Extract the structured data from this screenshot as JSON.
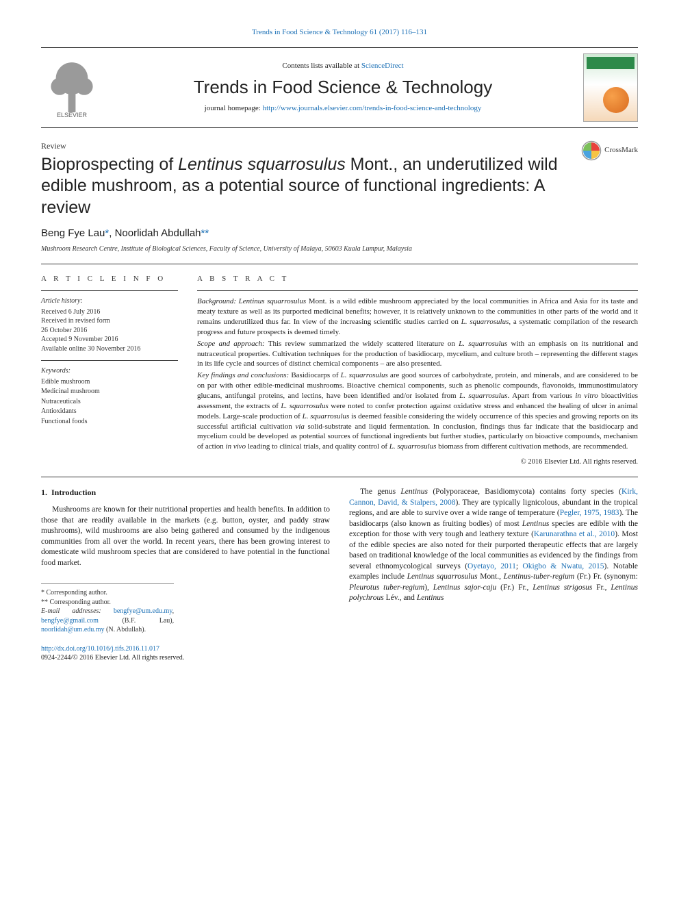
{
  "top_citation": "Trends in Food Science & Technology 61 (2017) 116–131",
  "masthead": {
    "contents_prefix": "Contents lists available at ",
    "contents_link": "ScienceDirect",
    "journal_name": "Trends in Food Science & Technology",
    "homepage_prefix": "journal homepage: ",
    "homepage_url": "http://www.journals.elsevier.com/trends-in-food-science-and-technology",
    "publisher": "ELSEVIER"
  },
  "article_type": "Review",
  "crossmark_label": "CrossMark",
  "title_html": "Bioprospecting of <em>Lentinus squarrosulus</em> Mont., an underutilized wild edible mushroom, as a potential source of functional ingredients: A review",
  "authors_html": "Beng Fye Lau<a href='#'>*</a>, Noorlidah Abdullah<a href='#'>**</a>",
  "affiliation": "Mushroom Research Centre, Institute of Biological Sciences, Faculty of Science, University of Malaya, 50603 Kuala Lumpur, Malaysia",
  "info": {
    "heading": "A R T I C L E   I N F O",
    "history_label": "Article history:",
    "history": [
      "Received 6 July 2016",
      "Received in revised form",
      "26 October 2016",
      "Accepted 9 November 2016",
      "Available online 30 November 2016"
    ],
    "keywords_label": "Keywords:",
    "keywords": [
      "Edible mushroom",
      "Medicinal mushroom",
      "Nutraceuticals",
      "Antioxidants",
      "Functional foods"
    ]
  },
  "abstract": {
    "heading": "A B S T R A C T",
    "bg_label": "Background:",
    "bg_html": " <em>Lentinus squarrosulus</em> Mont. is a wild edible mushroom appreciated by the local communities in Africa and Asia for its taste and meaty texture as well as its purported medicinal benefits; however, it is relatively unknown to the communities in other parts of the world and it remains underutilized thus far. In view of the increasing scientific studies carried on <em>L. squarrosulus</em>, a systematic compilation of the research progress and future prospects is deemed timely.",
    "scope_label": "Scope and approach:",
    "scope_html": " This review summarized the widely scattered literature on <em>L. squarrosulus</em> with an emphasis on its nutritional and nutraceutical properties. Cultivation techniques for the production of basidiocarp, mycelium, and culture broth – representing the different stages in its life cycle and sources of distinct chemical components – are also presented.",
    "key_label": "Key findings and conclusions:",
    "key_html": " Basidiocarps of <em>L. squarrosulus</em> are good sources of carbohydrate, protein, and minerals, and are considered to be on par with other edible-medicinal mushrooms. Bioactive chemical components, such as phenolic compounds, flavonoids, immunostimulatory glucans, antifungal proteins, and lectins, have been identified and/or isolated from <em>L. squarrosulus</em>. Apart from various <em>in vitro</em> bioactivities assessment, the extracts of <em>L. squarrosulus</em> were noted to confer protection against oxidative stress and enhanced the healing of ulcer in animal models. Large-scale production of <em>L. squarrosulus</em> is deemed feasible considering the widely occurrence of this species and growing reports on its successful artificial cultivation <em>via</em> solid-substrate and liquid fermentation. In conclusion, findings thus far indicate that the basidiocarp and mycelium could be developed as potential sources of functional ingredients but further studies, particularly on bioactive compounds, mechanism of action <em>in vivo</em> leading to clinical trials, and quality control of <em>L. squarrosulus</em> biomass from different cultivation methods, are recommended.",
    "copyright": "© 2016 Elsevier Ltd. All rights reserved."
  },
  "body": {
    "section_number": "1.",
    "section_title": "Introduction",
    "left_html": "Mushrooms are known for their nutritional properties and health benefits. In addition to those that are readily available in the markets (e.g. button, oyster, and paddy straw mushrooms), wild mushrooms are also being gathered and consumed by the indigenous communities from all over the world. In recent years, there has been growing interest to domesticate wild mushroom species that are considered to have potential in the functional food market.",
    "right_html": "The genus <em>Lentinus</em> (Polyporaceae, Basidiomycota) contains forty species (<a href='#'>Kirk, Cannon, David, &amp; Stalpers, 2008</a>). They are typically lignicolous, abundant in the tropical regions, and are able to survive over a wide range of temperature (<a href='#'>Pegler, 1975, 1983</a>). The basidiocarps (also known as fruiting bodies) of most <em>Lentinus</em> species are edible with the exception for those with very tough and leathery texture (<a href='#'>Karunarathna et al., 2010</a>). Most of the edible species are also noted for their purported therapeutic effects that are largely based on traditional knowledge of the local communities as evidenced by the findings from several ethnomycological surveys (<a href='#'>Oyetayo, 2011</a>; <a href='#'>Okigbo &amp; Nwatu, 2015</a>). Notable examples include <em>Lentinus squarrosulus</em> Mont., <em>Lentinus-tuber-regium</em> (Fr.) Fr. (synonym: <em>Pleurotus tuber-regium</em>), <em>Lentinus sajor-caju</em> (Fr.) Fr., <em>Lentinus strigosus</em> Fr., <em>Lentinus polychrous</em> Lév., and <em>Lentinus</em>"
  },
  "footnotes": {
    "corr1": "* Corresponding author.",
    "corr2": "** Corresponding author.",
    "email_label": "E-mail addresses:",
    "email_html": " <a href='#'>bengfye@um.edu.my</a>, <a href='#'>bengfye@gmail.com</a> (B.F. Lau), <a href='#'>noorlidah@um.edu.my</a> (N. Abdullah)."
  },
  "doi": {
    "url": "http://dx.doi.org/10.1016/j.tifs.2016.11.017",
    "issn_line": "0924-2244/© 2016 Elsevier Ltd. All rights reserved."
  },
  "colors": {
    "link": "#1a6fb5",
    "text": "#1a1a1a",
    "rule": "#333333"
  }
}
